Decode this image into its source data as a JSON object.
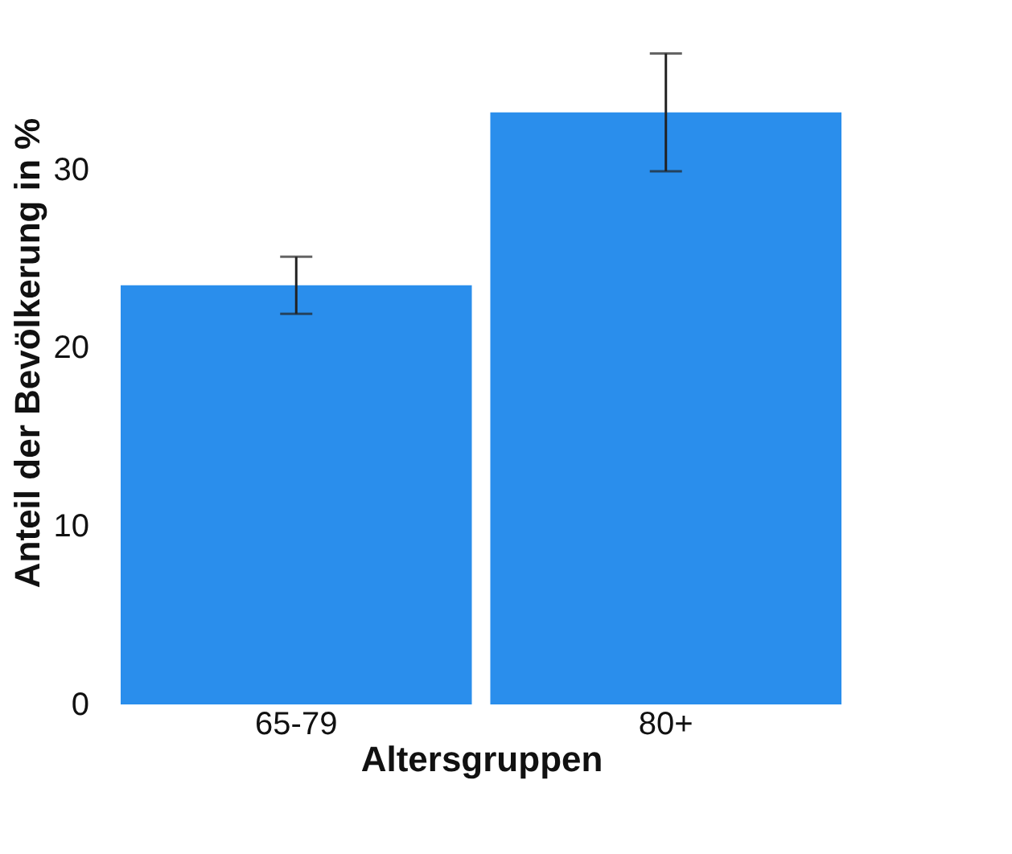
{
  "chart_data": {
    "type": "bar",
    "xlabel": "Altersgruppen",
    "ylabel": "Anteil der Bevölkerung in %",
    "categories": [
      "65-79",
      "80+"
    ],
    "values": [
      23.5,
      33.2
    ],
    "errors": [
      [
        21.9,
        25.1
      ],
      [
        29.9,
        36.5
      ]
    ],
    "color": "#2a8eec",
    "ylim": [
      0,
      39.5
    ],
    "yticks": [
      0,
      10,
      20,
      30
    ],
    "grid": false
  }
}
